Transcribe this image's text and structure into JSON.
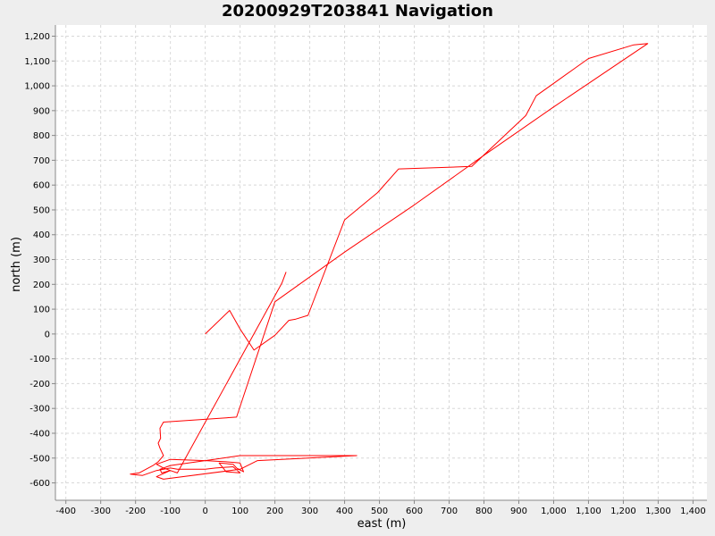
{
  "chart_data": {
    "type": "line",
    "title": "20200929T203841 Navigation",
    "xlabel": "east (m)",
    "ylabel": "north (m)",
    "xlim": [
      -430,
      1440
    ],
    "ylim": [
      -670,
      1245
    ],
    "grid": true,
    "xticks": [
      -400,
      -300,
      -200,
      -100,
      0,
      100,
      200,
      300,
      400,
      500,
      600,
      700,
      800,
      900,
      1000,
      1100,
      1200,
      1300,
      1400
    ],
    "xtick_labels": [
      "-400",
      "-300",
      "-200",
      "-100",
      "0",
      "100",
      "200",
      "300",
      "400",
      "500",
      "600",
      "700",
      "800",
      "900",
      "1,000",
      "1,100",
      "1,200",
      "1,300",
      "1,400"
    ],
    "yticks": [
      -600,
      -500,
      -400,
      -300,
      -200,
      -100,
      0,
      100,
      200,
      300,
      400,
      500,
      600,
      700,
      800,
      900,
      1000,
      1100,
      1200
    ],
    "ytick_labels": [
      "-600",
      "-500",
      "-400",
      "-300",
      "-200",
      "-100",
      "0",
      "100",
      "200",
      "300",
      "400",
      "500",
      "600",
      "700",
      "800",
      "900",
      "1,000",
      "1,100",
      "1,200"
    ],
    "series": [
      {
        "color": "#ff0000",
        "x": [
          0,
          70,
          100,
          140,
          200,
          240,
          260,
          295,
          400,
          495,
          555,
          765,
          920,
          950,
          1000,
          1060,
          1100,
          1230,
          1270,
          1180,
          1000,
          800,
          600,
          400,
          200,
          90,
          -120,
          -130,
          -128,
          -135,
          -130,
          -120,
          -135,
          -150,
          -190,
          -215,
          -180,
          -140,
          -100,
          -80,
          0,
          30,
          80,
          100,
          60,
          40,
          80,
          90,
          110,
          100,
          60,
          0,
          -100,
          -140,
          -120,
          -100,
          -140,
          -120,
          100,
          150,
          435,
          100,
          0,
          -100,
          -130,
          -125,
          -100,
          -80,
          220,
          232
        ],
        "y": [
          0,
          95,
          20,
          -65,
          -5,
          55,
          60,
          75,
          460,
          570,
          665,
          675,
          880,
          960,
          1010,
          1070,
          1110,
          1165,
          1170,
          1085,
          915,
          720,
          520,
          330,
          130,
          -335,
          -355,
          -380,
          -420,
          -440,
          -460,
          -490,
          -515,
          -530,
          -560,
          -565,
          -570,
          -550,
          -540,
          -545,
          -545,
          -540,
          -535,
          -560,
          -555,
          -520,
          -525,
          -540,
          -555,
          -520,
          -515,
          -510,
          -505,
          -525,
          -540,
          -550,
          -575,
          -585,
          -545,
          -510,
          -490,
          -490,
          -510,
          -530,
          -545,
          -560,
          -550,
          -560,
          205,
          250
        ]
      }
    ]
  }
}
